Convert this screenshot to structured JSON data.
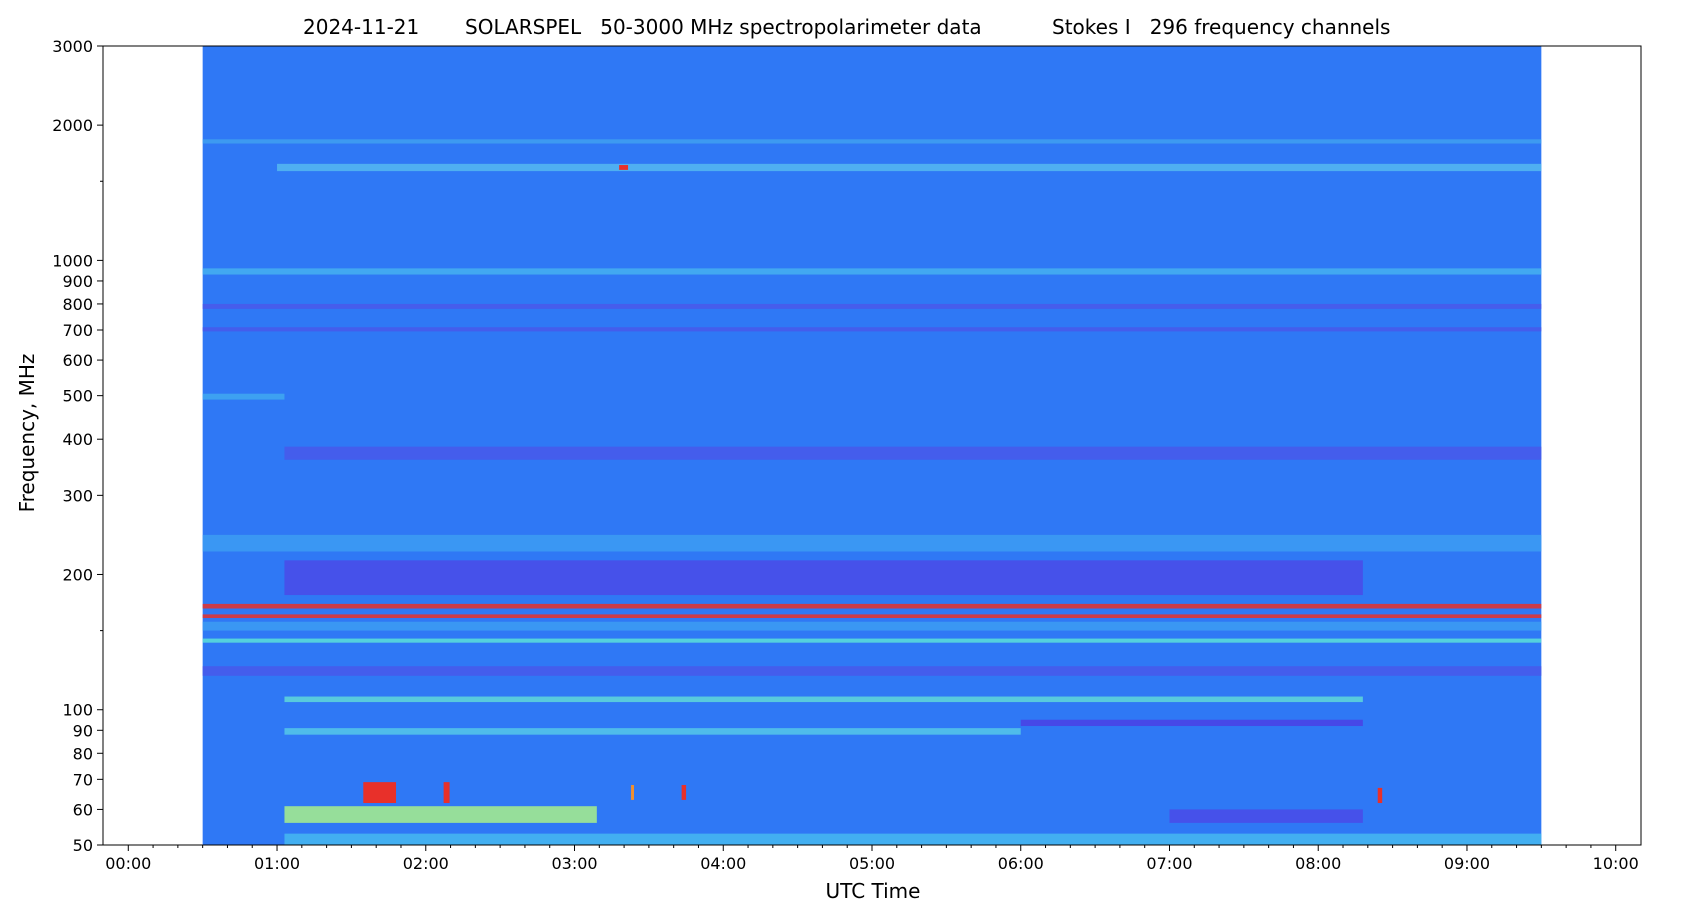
{
  "chart_data": {
    "type": "heatmap",
    "title_parts": [
      "2024-11-21",
      "SOLARSPEL   50-3000 MHz spectropolarimeter data",
      "Stokes I   296 frequency channels"
    ],
    "xlabel": "UTC Time",
    "ylabel": "Frequency, MHz",
    "x_range_hours": [
      -0.17,
      10.17
    ],
    "x_ticks": [
      {
        "h": 0,
        "label": "00:00"
      },
      {
        "h": 1,
        "label": "01:00"
      },
      {
        "h": 2,
        "label": "02:00"
      },
      {
        "h": 3,
        "label": "03:00"
      },
      {
        "h": 4,
        "label": "04:00"
      },
      {
        "h": 5,
        "label": "05:00"
      },
      {
        "h": 6,
        "label": "06:00"
      },
      {
        "h": 7,
        "label": "07:00"
      },
      {
        "h": 8,
        "label": "08:00"
      },
      {
        "h": 9,
        "label": "09:00"
      },
      {
        "h": 10,
        "label": "10:00"
      }
    ],
    "y_scale": "log",
    "y_range_mhz": [
      50,
      3000
    ],
    "y_ticks": [
      {
        "v": 50,
        "label": "50"
      },
      {
        "v": 60,
        "label": "60"
      },
      {
        "v": 70,
        "label": "70"
      },
      {
        "v": 80,
        "label": "80"
      },
      {
        "v": 90,
        "label": "90"
      },
      {
        "v": 100,
        "label": "100"
      },
      {
        "v": 200,
        "label": "200"
      },
      {
        "v": 300,
        "label": "300"
      },
      {
        "v": 400,
        "label": "400"
      },
      {
        "v": 500,
        "label": "500"
      },
      {
        "v": 600,
        "label": "600"
      },
      {
        "v": 700,
        "label": "700"
      },
      {
        "v": 800,
        "label": "800"
      },
      {
        "v": 900,
        "label": "900"
      },
      {
        "v": 1000,
        "label": "1000"
      },
      {
        "v": 2000,
        "label": "2000"
      },
      {
        "v": 3000,
        "label": "3000"
      }
    ],
    "y_minor_ticks": [
      150,
      1500
    ],
    "data_time_span_hours": [
      0.5,
      9.5
    ],
    "background_color": "#2f78f5",
    "bands": [
      {
        "f1": 1580,
        "f2": 1640,
        "color": "#55b8f0",
        "t1": 1.0,
        "t2": 9.5
      },
      {
        "f1": 1820,
        "f2": 1860,
        "color": "#3fa0f0",
        "t1": 0.5,
        "t2": 9.5
      },
      {
        "f1": 930,
        "f2": 960,
        "color": "#45b0f0",
        "t1": 0.5,
        "t2": 9.5
      },
      {
        "f1": 780,
        "f2": 800,
        "color": "#4a58ea",
        "t1": 0.5,
        "t2": 9.5
      },
      {
        "f1": 695,
        "f2": 710,
        "color": "#4858ea",
        "t1": 0.5,
        "t2": 9.5
      },
      {
        "f1": 490,
        "f2": 505,
        "color": "#40a8f0",
        "t1": 0.5,
        "t2": 1.05
      },
      {
        "f1": 360,
        "f2": 385,
        "color": "#4858ea",
        "t1": 1.05,
        "t2": 9.5
      },
      {
        "f1": 225,
        "f2": 245,
        "color": "#3c9cf2",
        "t1": 0.5,
        "t2": 9.5
      },
      {
        "f1": 180,
        "f2": 215,
        "color": "#4a4ae8",
        "t1": 1.05,
        "t2": 8.3
      },
      {
        "f1": 168,
        "f2": 172,
        "color": "#e8302a",
        "t1": 0.5,
        "t2": 9.5
      },
      {
        "f1": 160,
        "f2": 163,
        "color": "#e8302a",
        "t1": 0.5,
        "t2": 9.5
      },
      {
        "f1": 150,
        "f2": 157,
        "color": "#3c9cf2",
        "t1": 0.5,
        "t2": 9.5
      },
      {
        "f1": 141,
        "f2": 144,
        "color": "#5ae0d8",
        "t1": 0.5,
        "t2": 9.5
      },
      {
        "f1": 119,
        "f2": 125,
        "color": "#4858ea",
        "t1": 0.5,
        "t2": 9.5
      },
      {
        "f1": 104,
        "f2": 107,
        "color": "#5fd8d8",
        "t1": 1.05,
        "t2": 8.3
      },
      {
        "f1": 92,
        "f2": 95,
        "color": "#4a40e4",
        "t1": 6.0,
        "t2": 8.3
      },
      {
        "f1": 88,
        "f2": 91,
        "color": "#55c8e8",
        "t1": 1.05,
        "t2": 6.0
      },
      {
        "f1": 56,
        "f2": 61,
        "color": "#a8f08a",
        "t1": 1.05,
        "t2": 3.15
      },
      {
        "f1": 56,
        "f2": 60,
        "color": "#4a4ae8",
        "t1": 7.0,
        "t2": 8.3
      },
      {
        "f1": 50,
        "f2": 53,
        "color": "#45b8f0",
        "t1": 1.05,
        "t2": 9.5
      }
    ],
    "bursts": [
      {
        "t1": 1.58,
        "t2": 1.8,
        "f1": 62,
        "f2": 69,
        "color": "#e8302a"
      },
      {
        "t1": 2.12,
        "t2": 2.16,
        "f1": 62,
        "f2": 69,
        "color": "#e8302a"
      },
      {
        "t1": 3.38,
        "t2": 3.4,
        "f1": 63,
        "f2": 68,
        "color": "#f09030"
      },
      {
        "t1": 3.72,
        "t2": 3.75,
        "f1": 63,
        "f2": 68,
        "color": "#e8302a"
      },
      {
        "t1": 8.4,
        "t2": 8.43,
        "f1": 62,
        "f2": 67,
        "color": "#e8302a"
      },
      {
        "t1": 3.3,
        "t2": 3.36,
        "f1": 1590,
        "f2": 1630,
        "color": "#e8302a"
      }
    ]
  }
}
